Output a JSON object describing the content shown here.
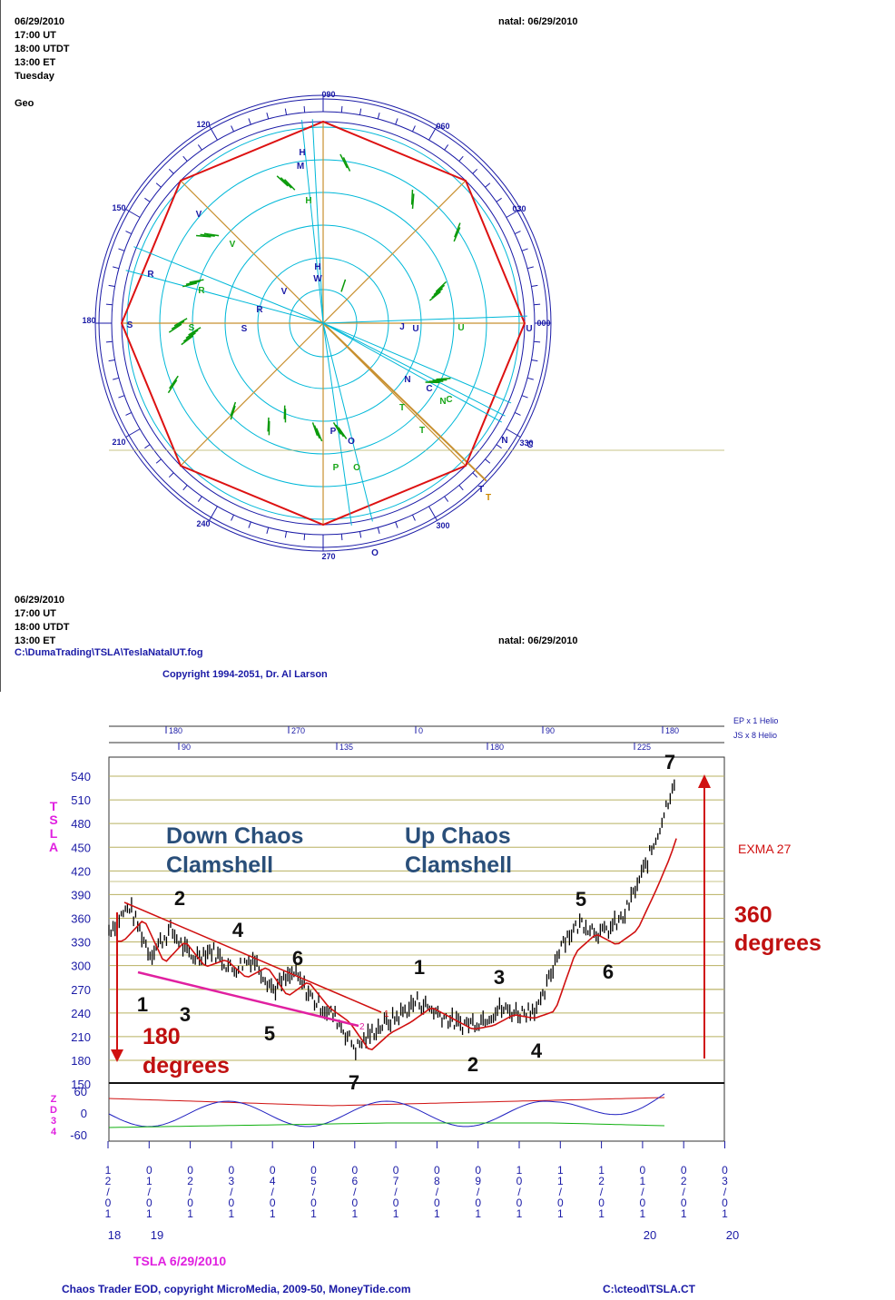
{
  "wheel": {
    "header_left": [
      "06/29/2010",
      "17:00 UT",
      "18:00 UTDT",
      "13:00 ET",
      "Tuesday"
    ],
    "mode": "Geo",
    "header_right": "natal: 06/29/2010",
    "footer_left": [
      "06/29/2010",
      "17:00 UT",
      "18:00 UTDT",
      "13:00 ET"
    ],
    "file_path": "C:\\DumaTrading\\TSLA\\TeslaNatalUT.fog",
    "footer_right": "natal: 06/29/2010",
    "copyright": "Copyright 1994-2051, Dr. Al Larson",
    "degree_labels": [
      "000",
      "030",
      "060",
      "090",
      "120",
      "150",
      "180",
      "210",
      "240",
      "270",
      "300",
      "330"
    ],
    "planet_labels": [
      {
        "t": "H",
        "c": "#1a1aa6"
      },
      {
        "t": "M",
        "c": "#1a1aa6"
      },
      {
        "t": "H",
        "c": "#1a1aa6"
      },
      {
        "t": "W",
        "c": "#1a1aa6"
      },
      {
        "t": "V",
        "c": "#1a1aa6"
      },
      {
        "t": "R",
        "c": "#1a1aa6"
      },
      {
        "t": "V",
        "c": "#1a1aa6"
      },
      {
        "t": "R",
        "c": "#1a1aa6"
      },
      {
        "t": "S",
        "c": "#1a1aa6"
      },
      {
        "t": "S",
        "c": "#1a1aa6"
      },
      {
        "t": "J",
        "c": "#1a1aa6"
      },
      {
        "t": "U",
        "c": "#1a1aa6"
      },
      {
        "t": "U",
        "c": "#1a1aa6"
      },
      {
        "t": "N",
        "c": "#1a1aa6"
      },
      {
        "t": "C",
        "c": "#1a1aa6"
      },
      {
        "t": "P",
        "c": "#1a1aa6"
      },
      {
        "t": "O",
        "c": "#1a1aa6"
      },
      {
        "t": "O",
        "c": "#1a1aa6"
      },
      {
        "t": "N",
        "c": "#1a1aa6"
      },
      {
        "t": "C",
        "c": "#1a1aa6"
      },
      {
        "t": "T",
        "c": "#1a1aa6"
      },
      {
        "t": "H",
        "c": "#1aa61a"
      },
      {
        "t": "V",
        "c": "#1aa61a"
      },
      {
        "t": "R",
        "c": "#1aa61a"
      },
      {
        "t": "S",
        "c": "#1aa61a"
      },
      {
        "t": "U",
        "c": "#1aa61a"
      },
      {
        "t": "N",
        "c": "#1aa61a"
      },
      {
        "t": "C",
        "c": "#1aa61a"
      },
      {
        "t": "T",
        "c": "#1aa61a"
      },
      {
        "t": "T",
        "c": "#1aa61a"
      },
      {
        "t": "P",
        "c": "#1aa61a"
      },
      {
        "t": "O",
        "c": "#1aa61a"
      },
      {
        "t": "T",
        "c": "#cc8800"
      }
    ]
  },
  "chart": {
    "top_scale_label_1": "EP x 1 Helio",
    "top_scale_label_2": "JS x 8 Helio",
    "top_scale_1": [
      "180",
      "270",
      "0",
      "90",
      "180"
    ],
    "top_scale_2": [
      "90",
      "135",
      "180",
      "225"
    ],
    "symbol_vertical": [
      "T",
      "S",
      "L",
      "A"
    ],
    "osc_vertical": [
      "Z",
      "D",
      "3",
      "4"
    ],
    "y_ticks": [
      "540",
      "510",
      "480",
      "450",
      "420",
      "390",
      "360",
      "330",
      "300",
      "270",
      "240",
      "210",
      "180",
      "150"
    ],
    "osc_ticks": [
      "60",
      "0",
      "-60"
    ],
    "x_dates": [
      {
        "m": "12",
        "d": "01"
      },
      {
        "m": "01",
        "d": "01"
      },
      {
        "m": "02",
        "d": "01"
      },
      {
        "m": "03",
        "d": "01"
      },
      {
        "m": "04",
        "d": "01"
      },
      {
        "m": "05",
        "d": "01"
      },
      {
        "m": "06",
        "d": "01"
      },
      {
        "m": "07",
        "d": "01"
      },
      {
        "m": "08",
        "d": "01"
      },
      {
        "m": "09",
        "d": "01"
      },
      {
        "m": "10",
        "d": "01"
      },
      {
        "m": "11",
        "d": "01"
      },
      {
        "m": "12",
        "d": "01"
      },
      {
        "m": "01",
        "d": "01"
      },
      {
        "m": "02",
        "d": "01"
      },
      {
        "m": "03",
        "d": "01"
      }
    ],
    "years": [
      "18",
      "19",
      "20",
      "20"
    ],
    "title_down_1": "Down Chaos",
    "title_down_2": "Clamshell",
    "title_up_1": "Up Chaos",
    "title_up_2": "Clamshell",
    "exma_label": "EXMA 27",
    "deg360_1": "360",
    "deg360_2": "degrees",
    "deg180_1": "180",
    "deg180_2": "degrees",
    "wave_labels": [
      "2",
      "4",
      "6",
      "1",
      "3",
      "5",
      "7",
      "1",
      "3",
      "5",
      "2",
      "4",
      "6",
      "7"
    ],
    "line_labels": [
      "1",
      "2"
    ],
    "symbol_date": "TSLA  6/29/2010",
    "footer": "Chaos Trader EOD, copyright MicroMedia, 2009-50, MoneyTide.com",
    "file": "C:\\cteod\\TSLA.CT"
  },
  "chart_data": {
    "type": "line",
    "title": "TSLA  6/29/2010",
    "ylabel": "TSLA",
    "ylim": [
      150,
      560
    ],
    "x": [
      "2018-12-01",
      "2019-01-01",
      "2019-02-01",
      "2019-03-01",
      "2019-04-01",
      "2019-05-01",
      "2019-06-01",
      "2019-07-01",
      "2019-08-01",
      "2019-09-01",
      "2019-10-01",
      "2019-11-01",
      "2019-12-01",
      "2020-01-01",
      "2020-02-01"
    ],
    "series": [
      {
        "name": "TSLA",
        "values": [
          360,
          310,
          310,
          290,
          280,
          240,
          200,
          230,
          240,
          225,
          250,
          345,
          340,
          430,
          520
        ]
      },
      {
        "name": "EXMA 27",
        "values": [
          340,
          330,
          315,
          300,
          285,
          265,
          215,
          220,
          232,
          228,
          238,
          290,
          335,
          390,
          465
        ]
      }
    ],
    "oscillator": {
      "name": "ZD34",
      "ylim": [
        -60,
        60
      ]
    },
    "annotations": [
      "Down Chaos Clamshell",
      "Up Chaos Clamshell",
      "180 degrees",
      "360 degrees",
      "EXMA 27"
    ]
  }
}
